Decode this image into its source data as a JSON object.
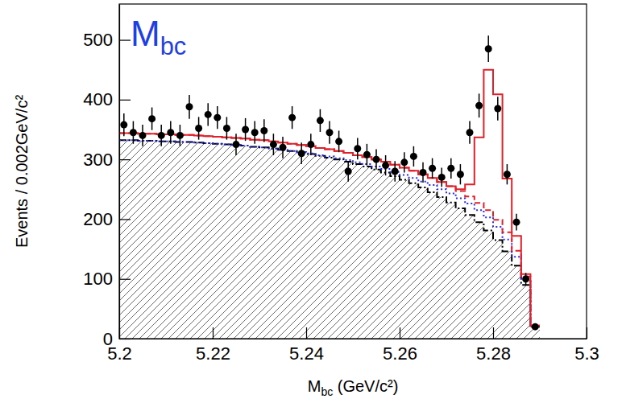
{
  "chart_data": {
    "type": "histogram",
    "title": "Mbc",
    "x_label": "Mbc (GeV/c²)",
    "y_label": "Events / 0.002GeV/c²",
    "bins": [
      5.2,
      5.202,
      5.204,
      5.206,
      5.208,
      5.21,
      5.212,
      5.214,
      5.216,
      5.218,
      5.22,
      5.222,
      5.224,
      5.226,
      5.228,
      5.23,
      5.232,
      5.234,
      5.236,
      5.238,
      5.24,
      5.242,
      5.244,
      5.246,
      5.248,
      5.25,
      5.252,
      5.254,
      5.256,
      5.258,
      5.26,
      5.262,
      5.264,
      5.266,
      5.268,
      5.27,
      5.272,
      5.274,
      5.276,
      5.278,
      5.28,
      5.282,
      5.284,
      5.286,
      5.288,
      5.29
    ],
    "xlim": [
      5.2,
      5.3
    ],
    "xticks": [
      5.2,
      5.22,
      5.24,
      5.26,
      5.28,
      5.3
    ],
    "ylim": [
      0,
      560
    ],
    "yticks": [
      0,
      100,
      200,
      300,
      400,
      500
    ],
    "series": [
      {
        "type": "area",
        "color": "#000000",
        "line_style": "dashdot",
        "values": [
          332,
          332,
          331,
          331,
          330,
          330,
          329,
          329,
          328,
          327,
          326,
          325,
          324,
          323,
          321,
          320,
          318,
          316,
          314,
          312,
          309,
          306,
          303,
          300,
          296,
          292,
          288,
          283,
          278,
          272,
          266,
          260,
          253,
          245,
          237,
          228,
          218,
          207,
          195,
          181,
          165,
          146,
          122,
          90,
          20
        ]
      },
      {
        "type": "step",
        "color": "#2a2aee",
        "line_style": "dotted",
        "values": [
          332,
          332,
          331,
          331,
          330,
          330,
          329,
          329,
          328,
          327,
          326,
          325,
          324,
          323,
          321,
          320,
          318,
          316,
          314,
          312,
          310,
          307,
          305,
          302,
          299,
          295,
          292,
          288,
          284,
          279,
          274,
          269,
          263,
          257,
          250,
          243,
          235,
          226,
          215,
          203,
          187,
          166,
          137,
          98,
          21
        ]
      },
      {
        "type": "step",
        "color": "#e0202a",
        "line_style": "dashed",
        "values": [
          344,
          344,
          343,
          343,
          342,
          342,
          341,
          341,
          340,
          339,
          338,
          337,
          336,
          335,
          333,
          332,
          330,
          328,
          326,
          324,
          322,
          319,
          317,
          314,
          311,
          307,
          304,
          300,
          296,
          291,
          286,
          281,
          275,
          269,
          262,
          255,
          247,
          238,
          227,
          215,
          199,
          178,
          147,
          104,
          22
        ]
      },
      {
        "type": "step",
        "color": "#e0202a",
        "line_style": "solid",
        "values": [
          344,
          344,
          343,
          343,
          342,
          342,
          341,
          341,
          340,
          339,
          338,
          337,
          336,
          335,
          333,
          332,
          330,
          328,
          326,
          324,
          322,
          319,
          317,
          314,
          311,
          307,
          304,
          300,
          296,
          291,
          286,
          281,
          275,
          269,
          262,
          255,
          250,
          258,
          337,
          450,
          409,
          268,
          172,
          108,
          22
        ]
      },
      {
        "type": "scatter",
        "color": "#000000",
        "marker": "circle",
        "values": [
          358,
          345,
          340,
          368,
          340,
          345,
          340,
          388,
          352,
          375,
          370,
          352,
          325,
          350,
          345,
          348,
          325,
          320,
          370,
          310,
          325,
          365,
          345,
          330,
          280,
          318,
          308,
          300,
          290,
          280,
          295,
          305,
          278,
          285,
          270,
          285,
          275,
          345,
          390,
          485,
          385,
          275,
          195,
          100,
          20
        ],
        "errors": [
          19,
          19,
          18,
          19,
          18,
          19,
          18,
          20,
          19,
          19,
          19,
          19,
          18,
          19,
          19,
          19,
          18,
          18,
          19,
          18,
          18,
          19,
          19,
          18,
          17,
          18,
          18,
          17,
          17,
          17,
          17,
          17,
          17,
          17,
          16,
          17,
          17,
          19,
          20,
          22,
          20,
          17,
          14,
          10,
          4
        ]
      }
    ]
  }
}
